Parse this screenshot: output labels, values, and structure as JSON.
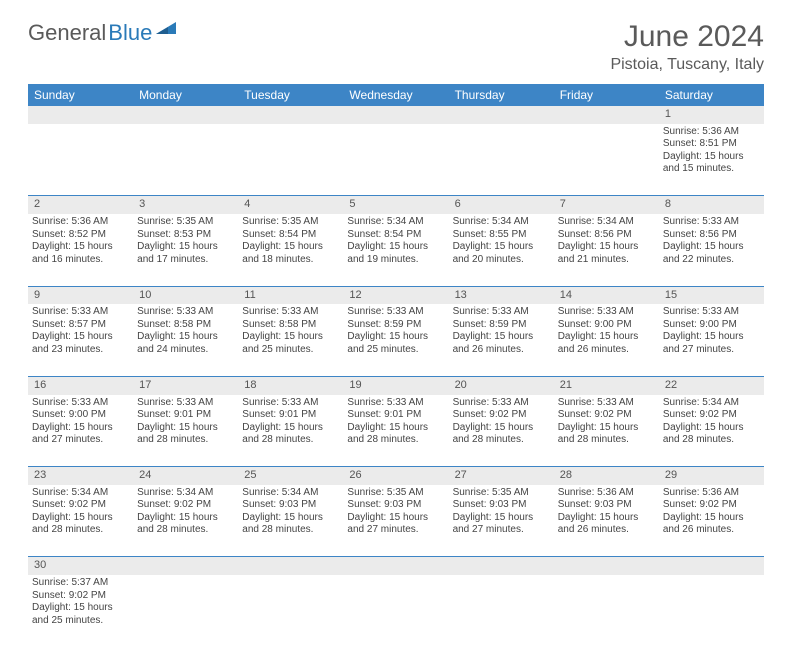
{
  "brand": {
    "part1": "General",
    "part2": "Blue"
  },
  "title": "June 2024",
  "location": "Pistoia, Tuscany, Italy",
  "colors": {
    "header_bg": "#3d85c6",
    "header_text": "#ffffff",
    "daynum_bg": "#ebebeb",
    "rule": "#3d85c6",
    "body_text": "#444444",
    "title_text": "#5a5a5a"
  },
  "weekdays": [
    "Sunday",
    "Monday",
    "Tuesday",
    "Wednesday",
    "Thursday",
    "Friday",
    "Saturday"
  ],
  "weeks": [
    {
      "nums": [
        "",
        "",
        "",
        "",
        "",
        "",
        "1"
      ],
      "cells": [
        null,
        null,
        null,
        null,
        null,
        null,
        {
          "sunrise": "Sunrise: 5:36 AM",
          "sunset": "Sunset: 8:51 PM",
          "day": "Daylight: 15 hours and 15 minutes."
        }
      ]
    },
    {
      "nums": [
        "2",
        "3",
        "4",
        "5",
        "6",
        "7",
        "8"
      ],
      "cells": [
        {
          "sunrise": "Sunrise: 5:36 AM",
          "sunset": "Sunset: 8:52 PM",
          "day": "Daylight: 15 hours and 16 minutes."
        },
        {
          "sunrise": "Sunrise: 5:35 AM",
          "sunset": "Sunset: 8:53 PM",
          "day": "Daylight: 15 hours and 17 minutes."
        },
        {
          "sunrise": "Sunrise: 5:35 AM",
          "sunset": "Sunset: 8:54 PM",
          "day": "Daylight: 15 hours and 18 minutes."
        },
        {
          "sunrise": "Sunrise: 5:34 AM",
          "sunset": "Sunset: 8:54 PM",
          "day": "Daylight: 15 hours and 19 minutes."
        },
        {
          "sunrise": "Sunrise: 5:34 AM",
          "sunset": "Sunset: 8:55 PM",
          "day": "Daylight: 15 hours and 20 minutes."
        },
        {
          "sunrise": "Sunrise: 5:34 AM",
          "sunset": "Sunset: 8:56 PM",
          "day": "Daylight: 15 hours and 21 minutes."
        },
        {
          "sunrise": "Sunrise: 5:33 AM",
          "sunset": "Sunset: 8:56 PM",
          "day": "Daylight: 15 hours and 22 minutes."
        }
      ]
    },
    {
      "nums": [
        "9",
        "10",
        "11",
        "12",
        "13",
        "14",
        "15"
      ],
      "cells": [
        {
          "sunrise": "Sunrise: 5:33 AM",
          "sunset": "Sunset: 8:57 PM",
          "day": "Daylight: 15 hours and 23 minutes."
        },
        {
          "sunrise": "Sunrise: 5:33 AM",
          "sunset": "Sunset: 8:58 PM",
          "day": "Daylight: 15 hours and 24 minutes."
        },
        {
          "sunrise": "Sunrise: 5:33 AM",
          "sunset": "Sunset: 8:58 PM",
          "day": "Daylight: 15 hours and 25 minutes."
        },
        {
          "sunrise": "Sunrise: 5:33 AM",
          "sunset": "Sunset: 8:59 PM",
          "day": "Daylight: 15 hours and 25 minutes."
        },
        {
          "sunrise": "Sunrise: 5:33 AM",
          "sunset": "Sunset: 8:59 PM",
          "day": "Daylight: 15 hours and 26 minutes."
        },
        {
          "sunrise": "Sunrise: 5:33 AM",
          "sunset": "Sunset: 9:00 PM",
          "day": "Daylight: 15 hours and 26 minutes."
        },
        {
          "sunrise": "Sunrise: 5:33 AM",
          "sunset": "Sunset: 9:00 PM",
          "day": "Daylight: 15 hours and 27 minutes."
        }
      ]
    },
    {
      "nums": [
        "16",
        "17",
        "18",
        "19",
        "20",
        "21",
        "22"
      ],
      "cells": [
        {
          "sunrise": "Sunrise: 5:33 AM",
          "sunset": "Sunset: 9:00 PM",
          "day": "Daylight: 15 hours and 27 minutes."
        },
        {
          "sunrise": "Sunrise: 5:33 AM",
          "sunset": "Sunset: 9:01 PM",
          "day": "Daylight: 15 hours and 28 minutes."
        },
        {
          "sunrise": "Sunrise: 5:33 AM",
          "sunset": "Sunset: 9:01 PM",
          "day": "Daylight: 15 hours and 28 minutes."
        },
        {
          "sunrise": "Sunrise: 5:33 AM",
          "sunset": "Sunset: 9:01 PM",
          "day": "Daylight: 15 hours and 28 minutes."
        },
        {
          "sunrise": "Sunrise: 5:33 AM",
          "sunset": "Sunset: 9:02 PM",
          "day": "Daylight: 15 hours and 28 minutes."
        },
        {
          "sunrise": "Sunrise: 5:33 AM",
          "sunset": "Sunset: 9:02 PM",
          "day": "Daylight: 15 hours and 28 minutes."
        },
        {
          "sunrise": "Sunrise: 5:34 AM",
          "sunset": "Sunset: 9:02 PM",
          "day": "Daylight: 15 hours and 28 minutes."
        }
      ]
    },
    {
      "nums": [
        "23",
        "24",
        "25",
        "26",
        "27",
        "28",
        "29"
      ],
      "cells": [
        {
          "sunrise": "Sunrise: 5:34 AM",
          "sunset": "Sunset: 9:02 PM",
          "day": "Daylight: 15 hours and 28 minutes."
        },
        {
          "sunrise": "Sunrise: 5:34 AM",
          "sunset": "Sunset: 9:02 PM",
          "day": "Daylight: 15 hours and 28 minutes."
        },
        {
          "sunrise": "Sunrise: 5:34 AM",
          "sunset": "Sunset: 9:03 PM",
          "day": "Daylight: 15 hours and 28 minutes."
        },
        {
          "sunrise": "Sunrise: 5:35 AM",
          "sunset": "Sunset: 9:03 PM",
          "day": "Daylight: 15 hours and 27 minutes."
        },
        {
          "sunrise": "Sunrise: 5:35 AM",
          "sunset": "Sunset: 9:03 PM",
          "day": "Daylight: 15 hours and 27 minutes."
        },
        {
          "sunrise": "Sunrise: 5:36 AM",
          "sunset": "Sunset: 9:03 PM",
          "day": "Daylight: 15 hours and 26 minutes."
        },
        {
          "sunrise": "Sunrise: 5:36 AM",
          "sunset": "Sunset: 9:02 PM",
          "day": "Daylight: 15 hours and 26 minutes."
        }
      ]
    },
    {
      "nums": [
        "30",
        "",
        "",
        "",
        "",
        "",
        ""
      ],
      "cells": [
        {
          "sunrise": "Sunrise: 5:37 AM",
          "sunset": "Sunset: 9:02 PM",
          "day": "Daylight: 15 hours and 25 minutes."
        },
        null,
        null,
        null,
        null,
        null,
        null
      ],
      "last": true
    }
  ]
}
